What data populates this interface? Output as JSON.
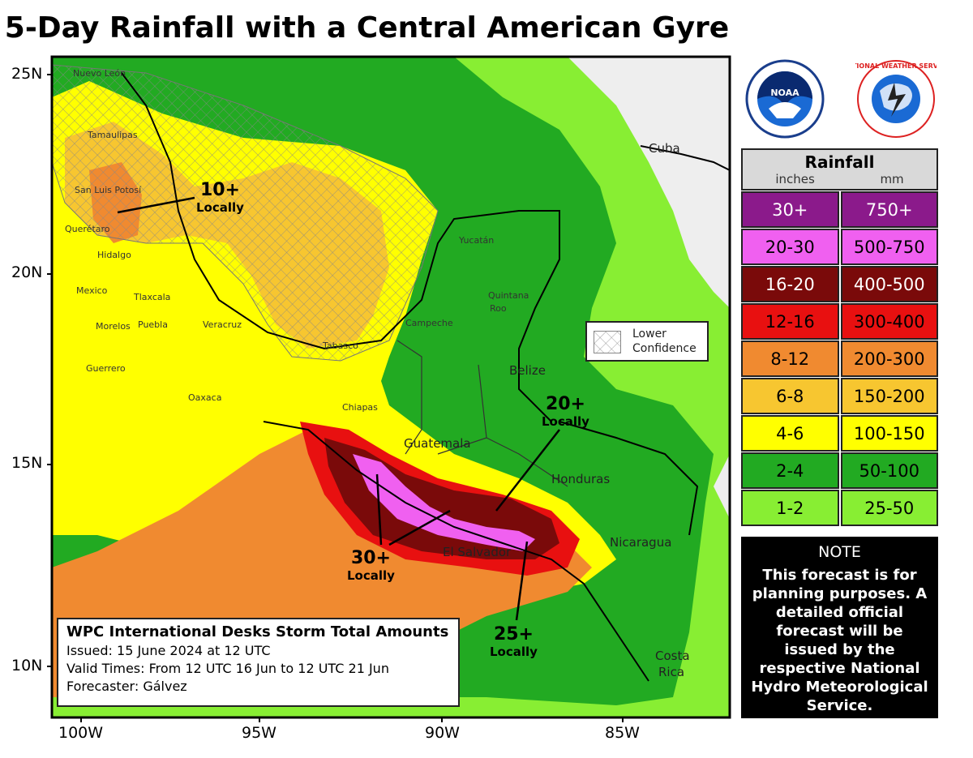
{
  "title": "5-Day Rainfall with a Central American Gyre",
  "axes": {
    "lat_labels": [
      "25N",
      "20N",
      "15N",
      "10N"
    ],
    "lon_labels": [
      "100W",
      "95W",
      "90W",
      "85W"
    ]
  },
  "legend": {
    "title": "Rainfall",
    "unit_in": "inches",
    "unit_mm": "mm",
    "rows": [
      {
        "inches": "30+",
        "mm": "750+",
        "color": "#8b1a8b",
        "text": "#ffffff"
      },
      {
        "inches": "20-30",
        "mm": "500-750",
        "color": "#f060f0",
        "text": "#000000"
      },
      {
        "inches": "16-20",
        "mm": "400-500",
        "color": "#7a0a0a",
        "text": "#ffffff"
      },
      {
        "inches": "12-16",
        "mm": "300-400",
        "color": "#e81010",
        "text": "#000000"
      },
      {
        "inches": "8-12",
        "mm": "200-300",
        "color": "#f08a30",
        "text": "#000000"
      },
      {
        "inches": "6-8",
        "mm": "150-200",
        "color": "#f7c630",
        "text": "#000000"
      },
      {
        "inches": "4-6",
        "mm": "100-150",
        "color": "#ffff00",
        "text": "#000000"
      },
      {
        "inches": "2-4",
        "mm": "50-100",
        "color": "#22aa22",
        "text": "#000000"
      },
      {
        "inches": "1-2",
        "mm": "25-50",
        "color": "#88ee33",
        "text": "#000000"
      }
    ]
  },
  "note": {
    "title": "NOTE",
    "body": "This forecast is for planning purposes. A detailed official forecast will be issued by the respective National Hydro Meteorological Service."
  },
  "info_box": {
    "title": "WPC International Desks Storm Total Amounts",
    "issued": "Issued:  15 June 2024 at 12 UTC",
    "valid": "Valid Times:  From 12 UTC 16 Jun  to 12 UTC 21 Jun",
    "forecaster": "Forecaster: Gálvez"
  },
  "lower_confidence": {
    "line1": "Lower",
    "line2": "Confidence"
  },
  "callouts": {
    "c10": {
      "big": "10+",
      "small": "Locally"
    },
    "c20": {
      "big": "20+",
      "small": "Locally"
    },
    "c30": {
      "big": "30+",
      "small": "Locally"
    },
    "c25": {
      "big": "25+",
      "small": "Locally"
    }
  },
  "countries": {
    "cuba": "Cuba",
    "belize": "Belize",
    "guatemala": "Guatemala",
    "honduras": "Honduras",
    "nicaragua": "Nicaragua",
    "el_salvador": "El Salvador",
    "costa_rica_1": "Costa",
    "costa_rica_2": "Rica"
  },
  "places": {
    "nuevo_leon": "Nuevo León",
    "tamaulipas": "Tamaulipas",
    "san_luis_potosi": "San Luis Potosí",
    "queretaro": "Querétaro",
    "hidalgo": "Hidalgo",
    "mexico": "Mexico",
    "tlaxcala": "Tlaxcala",
    "morelos": "Morelos",
    "puebla": "Puebla",
    "veracruz": "Veracruz",
    "guerrero": "Guerrero",
    "oaxaca": "Oaxaca",
    "tabasco": "Tabasco",
    "chiapas": "Chiapas",
    "campeche": "Campeche",
    "yucatan": "Yucatán",
    "quintana_1": "Quintana",
    "quintana_2": "Roo"
  },
  "logos": {
    "noaa": "NOAA",
    "nws": "NATIONAL WEATHER SERVICE"
  }
}
